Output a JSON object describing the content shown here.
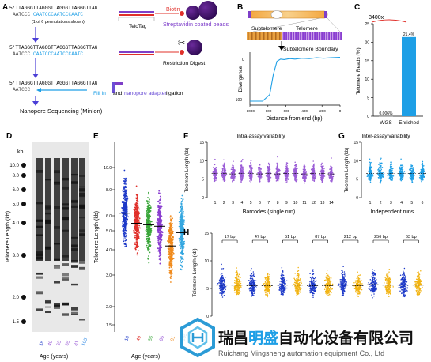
{
  "panels": {
    "A": {
      "letter": "A",
      "seq_top": "5'TTAGGGTTAGGGTTAGGGTTAGGGTTAG",
      "seq_bottom": "AATCCC",
      "seq_adapter": "CAATCCCAATCCCAATC",
      "permutation_note": "(1 of 6 permutations shown)",
      "telotag": "TeloTag",
      "biotin": "Biotin",
      "beads": "Streptavidin coated beads",
      "restriction": "Restriction Digest",
      "fill_in": "Fill in",
      "and_word": "and",
      "nanopore_adapter": "nanopore adapter",
      "ligation": "ligation",
      "sequencing": "Nanopore Sequencing (MinIon)"
    },
    "B": {
      "letter": "B",
      "subtelomere": "Subtelomere",
      "telomere": "Telomere",
      "boundary": "Subtelomere Boundary",
      "ylabel": "Divergence",
      "xlabel": "Distance from end (bp)",
      "xticks": [
        "-1000",
        "-800",
        "-600",
        "-400",
        "-200",
        "0"
      ]
    },
    "C": {
      "letter": "C",
      "fold": "~3400x",
      "ylabel": "Telomere Reads (%)",
      "yticks": [
        "0",
        "5",
        "10",
        "15",
        "20",
        "25"
      ],
      "categories": [
        "WGS",
        "Enriched"
      ],
      "value_labels": [
        "0.006%",
        "21.4%"
      ]
    },
    "D": {
      "letter": "D",
      "kb": "kb",
      "markers": [
        "10.0",
        "8.0",
        "6.0",
        "5.0",
        "4.0",
        "3.0",
        "2.0",
        "1.5"
      ],
      "ylabel": "Telomere Length (kb)",
      "lanes": [
        "18",
        "49",
        "55",
        "65",
        "81",
        "105"
      ],
      "xlabel": "Age (years)"
    },
    "E": {
      "letter": "E",
      "ylabel": "Telomere Length (kb)",
      "yticks": [
        "1.5",
        "2.0",
        "3.0",
        "4.0",
        "5.0",
        "6.0",
        "8.0",
        "10.0"
      ],
      "ages": [
        "18",
        "49",
        "55",
        "65",
        "81",
        "105"
      ],
      "xlabel": "Age (years)"
    },
    "F": {
      "letter": "F",
      "title": "Intra-assay variability",
      "ylabel": "Telomere Length (kb)",
      "yticks": [
        "0",
        "5",
        "10",
        "15"
      ],
      "xticks": [
        "1",
        "2",
        "3",
        "4",
        "5",
        "6",
        "7",
        "8",
        "9",
        "10",
        "11",
        "12",
        "13",
        "14"
      ],
      "xlabel": "Barcodes (single run)"
    },
    "G": {
      "letter": "G",
      "title": "Inter-assay variability",
      "ylabel": "Telomere Length (kb)",
      "yticks": [
        "0",
        "5",
        "10",
        "15"
      ],
      "xticks": [
        "1",
        "2",
        "3",
        "4",
        "5",
        "6"
      ],
      "xlabel": "Independent runs"
    },
    "H": {
      "letter": "H",
      "ylabel": "Telomere Length (kb)",
      "yticks": [
        "0",
        "5",
        "10",
        "15"
      ],
      "pair_labels": [
        "17 bp",
        "47 bp",
        "51 bp",
        "87 bp",
        "212 bp",
        "256 bp",
        "63 bp"
      ]
    }
  },
  "watermark": {
    "cn_part1": "瑞昌",
    "cn_part2": "明盛",
    "cn_part3": "自动化设备有限公司",
    "en": "Ruichang Mingsheng automation equipment Co., Ltd"
  },
  "colors": {
    "blue": "#1d39c8",
    "red": "#e0302a",
    "green": "#3aa63a",
    "purple": "#8a3fd0",
    "orange": "#f08a1c",
    "skyblue": "#35a7e0",
    "lightblue": "#3a8fe6",
    "yellow": "#f2b414",
    "violet": "#9a5cd6",
    "cyan": "#1e9fe6",
    "arrow": "#4b3fd6",
    "logo": "#2b9bd6"
  },
  "chart_data": [
    {
      "panel": "B",
      "type": "line",
      "xlabel": "Distance from end (bp)",
      "ylabel": "Divergence",
      "xlim": [
        -1000,
        0
      ],
      "x": [
        -1000,
        -860,
        -780,
        -740,
        -700,
        -660,
        -620,
        -560,
        -500,
        -420,
        -340,
        -260,
        -180,
        -100,
        0
      ],
      "y": [
        -100,
        -100,
        -85,
        -40,
        -10,
        -5,
        -6,
        -4,
        -5,
        -3,
        -4,
        -2,
        -3,
        -2,
        -1
      ]
    },
    {
      "panel": "C",
      "type": "bar",
      "categories": [
        "WGS",
        "Enriched"
      ],
      "values": [
        0.006,
        21.4
      ],
      "ylabel": "Telomere Reads (%)",
      "ylim": [
        0,
        25
      ]
    },
    {
      "panel": "E",
      "type": "scatter",
      "categories": [
        "18",
        "49",
        "55",
        "65",
        "81",
        "105"
      ],
      "medians": [
        6.2,
        5.5,
        5.4,
        5.3,
        4.2,
        4.9
      ],
      "ylabel": "Telomere Length (kb)",
      "xlabel": "Age (years)"
    },
    {
      "panel": "F",
      "type": "scatter",
      "categories": [
        "1",
        "2",
        "3",
        "4",
        "5",
        "6",
        "7",
        "8",
        "9",
        "10",
        "11",
        "12",
        "13",
        "14"
      ],
      "medians": [
        6.5,
        6.5,
        6.4,
        6.5,
        6.5,
        6.4,
        6.5,
        6.4,
        6.5,
        6.5,
        6.4,
        6.5,
        6.5,
        6.4
      ],
      "ylim": [
        0,
        15
      ]
    },
    {
      "panel": "G",
      "type": "scatter",
      "categories": [
        "1",
        "2",
        "3",
        "4",
        "5",
        "6"
      ],
      "medians": [
        6.5,
        6.5,
        6.5,
        6.5,
        6.5,
        6.5
      ],
      "ylim": [
        0,
        15
      ]
    },
    {
      "panel": "H",
      "type": "scatter",
      "pairs": [
        "17 bp",
        "47 bp",
        "51 bp",
        "87 bp",
        "212 bp",
        "256 bp",
        "63 bp"
      ],
      "medians": [
        5.6,
        5.6,
        5.5,
        5.5,
        5.6,
        5.6,
        5.5,
        5.5,
        5.6,
        5.5,
        5.7,
        5.6,
        5.6,
        5.6
      ],
      "ylim": [
        0,
        15
      ]
    }
  ]
}
